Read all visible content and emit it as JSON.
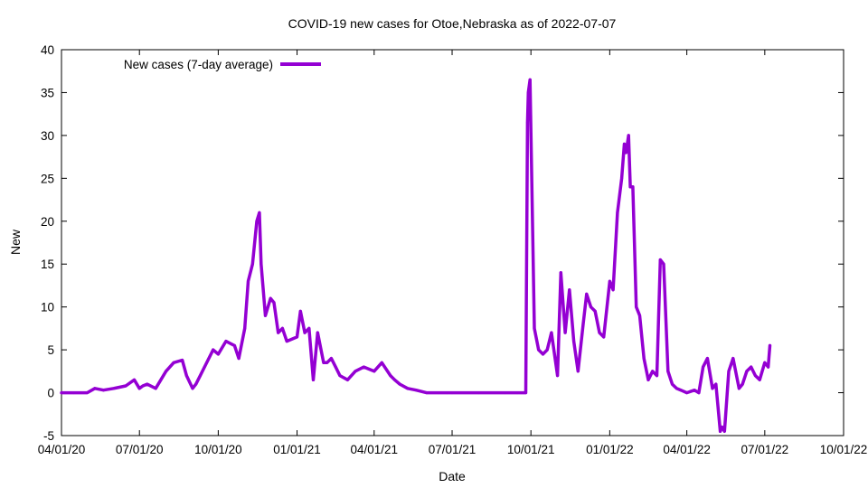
{
  "chart_data": {
    "type": "line",
    "title": "COVID-19 new cases for Otoe,Nebraska as of 2022-07-07",
    "xlabel": "Date",
    "ylabel": "New",
    "xlim": [
      "2020-04-01",
      "2022-10-01"
    ],
    "ylim": [
      -5,
      40
    ],
    "x_ticks": [
      "04/01/20",
      "07/01/20",
      "10/01/20",
      "01/01/21",
      "04/01/21",
      "07/01/21",
      "10/01/21",
      "01/01/22",
      "04/01/22",
      "07/01/22",
      "10/01/22"
    ],
    "y_ticks": [
      -5,
      0,
      5,
      10,
      15,
      20,
      25,
      30,
      35,
      40
    ],
    "grid": false,
    "legend_position": "top-left",
    "series": [
      {
        "name": "New cases (7-day average)",
        "color": "#9400d3",
        "x": [
          "2020-04-01",
          "2020-04-15",
          "2020-05-01",
          "2020-05-10",
          "2020-05-20",
          "2020-06-01",
          "2020-06-15",
          "2020-06-25",
          "2020-07-01",
          "2020-07-05",
          "2020-07-10",
          "2020-07-20",
          "2020-08-01",
          "2020-08-10",
          "2020-08-20",
          "2020-08-25",
          "2020-09-01",
          "2020-09-05",
          "2020-09-10",
          "2020-09-15",
          "2020-09-25",
          "2020-10-01",
          "2020-10-10",
          "2020-10-20",
          "2020-10-25",
          "2020-11-01",
          "2020-11-05",
          "2020-11-10",
          "2020-11-15",
          "2020-11-18",
          "2020-11-20",
          "2020-11-25",
          "2020-12-01",
          "2020-12-05",
          "2020-12-10",
          "2020-12-15",
          "2020-12-20",
          "2021-01-01",
          "2021-01-05",
          "2021-01-10",
          "2021-01-15",
          "2021-01-20",
          "2021-01-25",
          "2021-02-01",
          "2021-02-05",
          "2021-02-10",
          "2021-02-15",
          "2021-02-20",
          "2021-03-01",
          "2021-03-10",
          "2021-03-20",
          "2021-04-01",
          "2021-04-10",
          "2021-04-20",
          "2021-04-25",
          "2021-05-01",
          "2021-05-10",
          "2021-05-20",
          "2021-06-01",
          "2021-06-15",
          "2021-06-25",
          "2021-07-01",
          "2021-08-01",
          "2021-09-01",
          "2021-09-15",
          "2021-09-20",
          "2021-09-23",
          "2021-09-25",
          "2021-09-27",
          "2021-09-28",
          "2021-09-30",
          "2021-10-05",
          "2021-10-10",
          "2021-10-15",
          "2021-10-20",
          "2021-10-25",
          "2021-11-01",
          "2021-11-05",
          "2021-11-10",
          "2021-11-15",
          "2021-11-20",
          "2021-11-25",
          "2021-12-01",
          "2021-12-05",
          "2021-12-10",
          "2021-12-15",
          "2021-12-20",
          "2021-12-25",
          "2022-01-01",
          "2022-01-05",
          "2022-01-10",
          "2022-01-15",
          "2022-01-18",
          "2022-01-20",
          "2022-01-23",
          "2022-01-25",
          "2022-01-28",
          "2022-02-01",
          "2022-02-05",
          "2022-02-10",
          "2022-02-15",
          "2022-02-20",
          "2022-02-25",
          "2022-03-01",
          "2022-03-05",
          "2022-03-10",
          "2022-03-15",
          "2022-03-20",
          "2022-03-25",
          "2022-04-01",
          "2022-04-10",
          "2022-04-15",
          "2022-04-20",
          "2022-04-25",
          "2022-05-01",
          "2022-05-05",
          "2022-05-10",
          "2022-05-12",
          "2022-05-15",
          "2022-05-20",
          "2022-05-25",
          "2022-06-01",
          "2022-06-05",
          "2022-06-10",
          "2022-06-15",
          "2022-06-20",
          "2022-06-25",
          "2022-07-01",
          "2022-07-05",
          "2022-07-07"
        ],
        "y": [
          0,
          0,
          0,
          0.5,
          0.3,
          0.5,
          0.8,
          1.5,
          0.5,
          0.8,
          1.0,
          0.5,
          2.5,
          3.5,
          3.8,
          2.0,
          0.5,
          1.0,
          2.0,
          3.0,
          5.0,
          4.5,
          6.0,
          5.5,
          4.0,
          7.5,
          13.0,
          15.0,
          20.0,
          21.0,
          15.0,
          9.0,
          11.0,
          10.5,
          7.0,
          7.5,
          6.0,
          6.5,
          9.5,
          7.0,
          7.5,
          1.5,
          7.0,
          3.5,
          3.5,
          4.0,
          3.0,
          2.0,
          1.5,
          2.5,
          3.0,
          2.5,
          3.5,
          2.0,
          1.5,
          1.0,
          0.5,
          0.3,
          0,
          0,
          0,
          0,
          0,
          0,
          0,
          0,
          0,
          0,
          31.5,
          35.0,
          36.5,
          7.5,
          5.0,
          4.5,
          5.0,
          7.0,
          2.0,
          14.0,
          7.0,
          12.0,
          6.0,
          2.5,
          8.0,
          11.5,
          10.0,
          9.5,
          7.0,
          6.5,
          13.0,
          12.0,
          21.0,
          25.0,
          29.0,
          28.0,
          30.0,
          24.0,
          24.0,
          10.0,
          9.0,
          4.0,
          1.5,
          2.5,
          2.0,
          15.5,
          15.0,
          2.5,
          1.0,
          0.5,
          0.3,
          0,
          0.3,
          0,
          3.0,
          4.0,
          0.5,
          1.0,
          -4.5,
          -4.0,
          -4.5,
          2.5,
          4.0,
          0.5,
          1.0,
          2.5,
          3.0,
          2.0,
          1.5,
          3.5,
          3.0,
          5.5
        ]
      }
    ]
  }
}
